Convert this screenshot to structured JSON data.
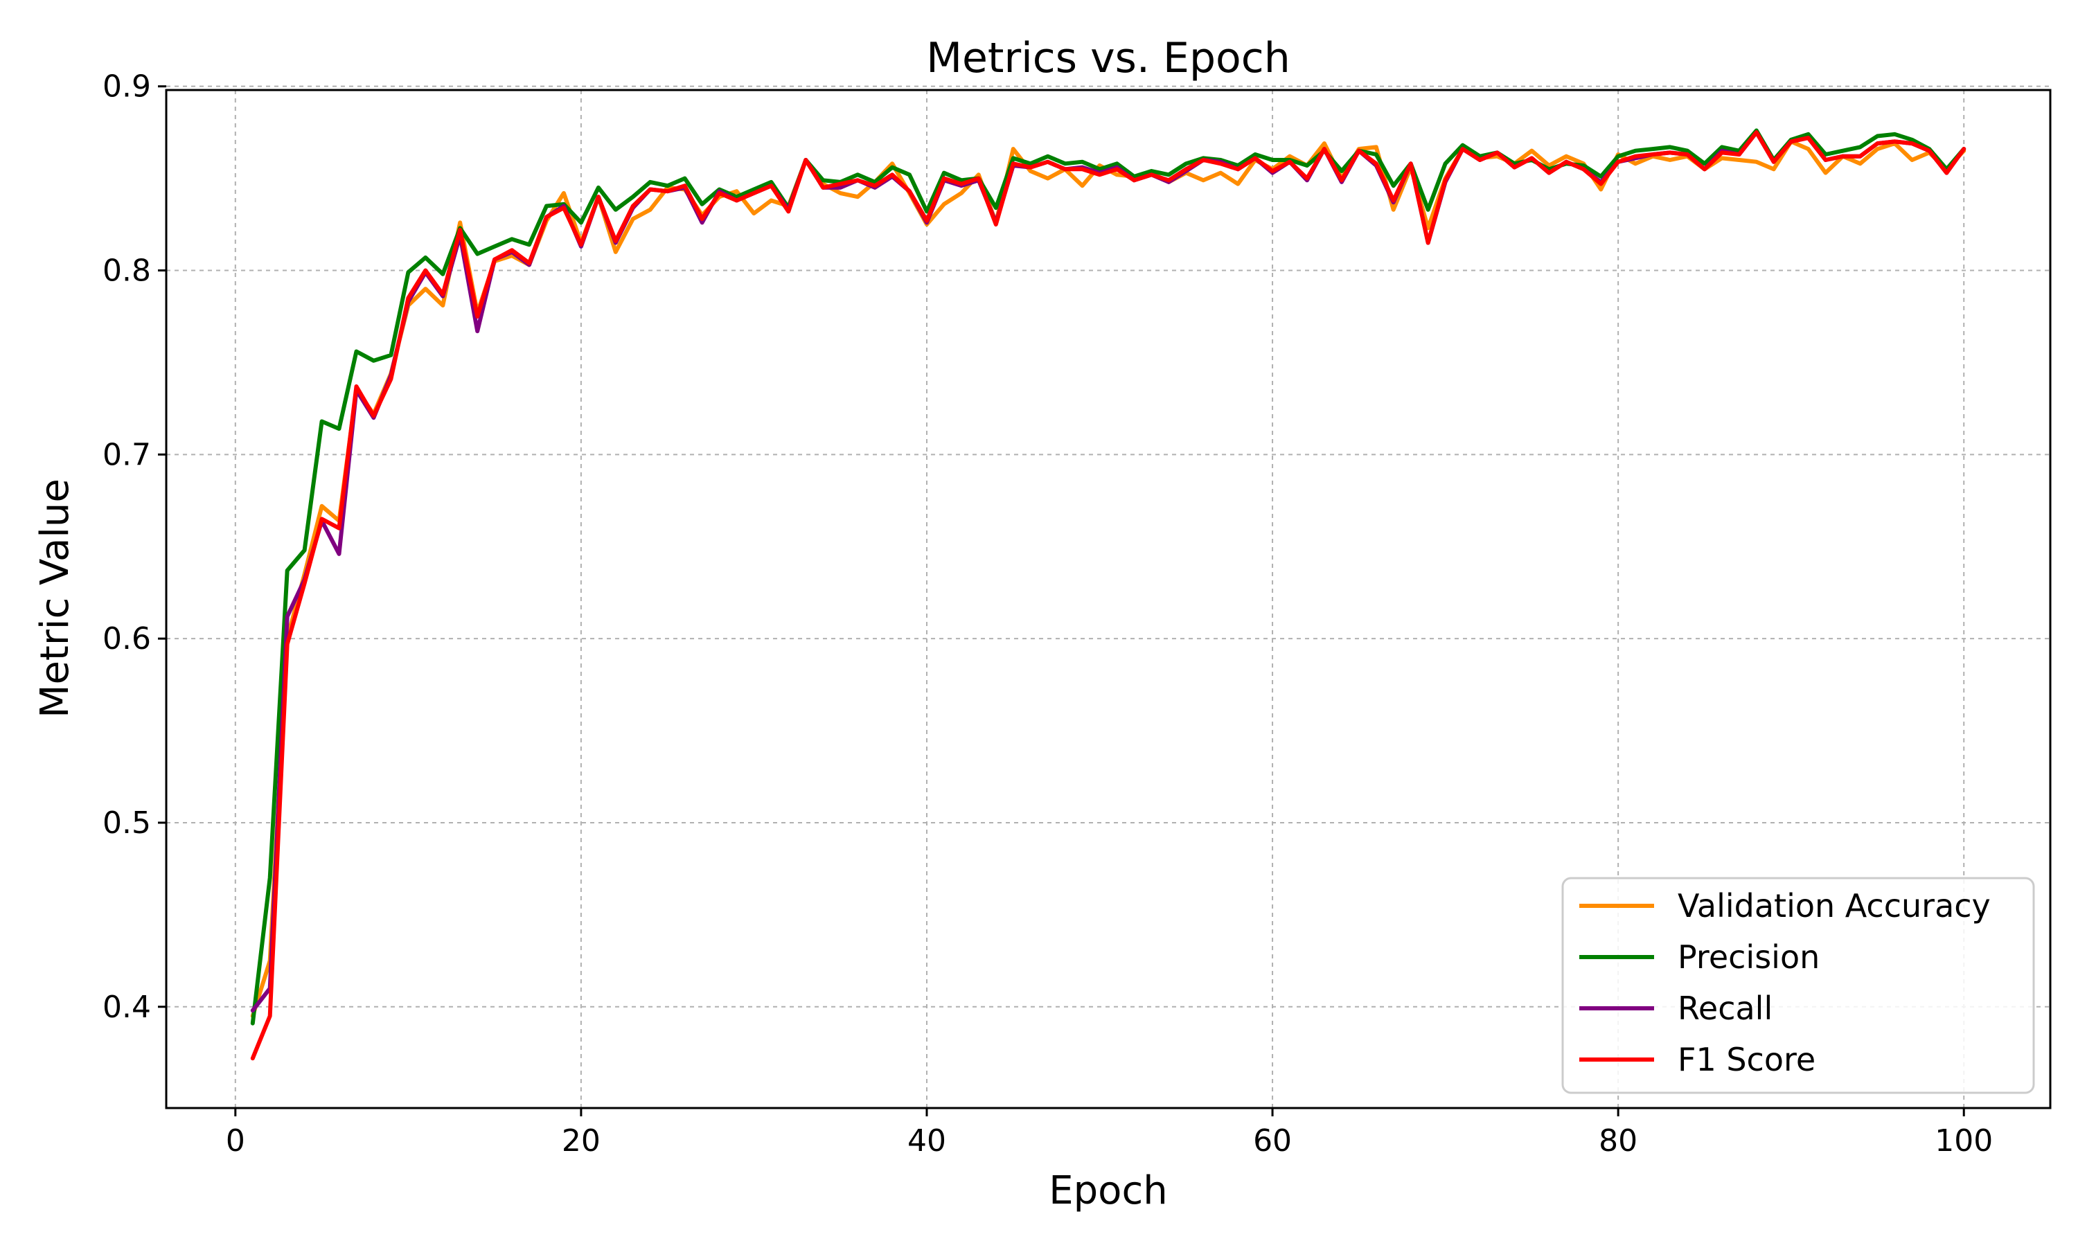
{
  "chart_data": {
    "type": "line",
    "title": "Metrics vs. Epoch",
    "xlabel": "Epoch",
    "ylabel": "Metric Value",
    "xlim": [
      -4,
      105
    ],
    "ylim": [
      0.345,
      0.898
    ],
    "xticks": [
      0,
      20,
      40,
      60,
      80,
      100
    ],
    "xtick_labels": [
      "0",
      "20",
      "40",
      "60",
      "80",
      "100"
    ],
    "yticks": [
      0.4,
      0.5,
      0.6,
      0.7,
      0.8,
      0.9
    ],
    "ytick_labels": [
      "0.4",
      "0.5",
      "0.6",
      "0.7",
      "0.8",
      "0.9"
    ],
    "grid": true,
    "legend_position": "lower-right",
    "x": [
      1,
      2,
      3,
      4,
      5,
      6,
      7,
      8,
      9,
      10,
      11,
      12,
      13,
      14,
      15,
      16,
      17,
      18,
      19,
      20,
      21,
      22,
      23,
      24,
      25,
      26,
      27,
      28,
      29,
      30,
      31,
      32,
      33,
      34,
      35,
      36,
      37,
      38,
      39,
      40,
      41,
      42,
      43,
      44,
      45,
      46,
      47,
      48,
      49,
      50,
      51,
      52,
      53,
      54,
      55,
      56,
      57,
      58,
      59,
      60,
      61,
      62,
      63,
      64,
      65,
      66,
      67,
      68,
      69,
      70,
      71,
      72,
      73,
      74,
      75,
      76,
      77,
      78,
      79,
      80,
      81,
      82,
      83,
      84,
      85,
      86,
      87,
      88,
      89,
      90,
      91,
      92,
      93,
      94,
      95,
      96,
      97,
      98,
      99,
      100
    ],
    "series": [
      {
        "name": "Validation Accuracy",
        "color": "#ff8c00",
        "values": [
          0.395,
          0.425,
          0.6,
          0.635,
          0.672,
          0.664,
          0.735,
          0.722,
          0.744,
          0.781,
          0.79,
          0.781,
          0.826,
          0.777,
          0.805,
          0.808,
          0.803,
          0.827,
          0.842,
          0.815,
          0.84,
          0.81,
          0.828,
          0.833,
          0.845,
          0.844,
          0.83,
          0.84,
          0.843,
          0.831,
          0.838,
          0.835,
          0.86,
          0.847,
          0.842,
          0.84,
          0.848,
          0.858,
          0.842,
          0.825,
          0.836,
          0.842,
          0.852,
          0.826,
          0.866,
          0.854,
          0.85,
          0.855,
          0.846,
          0.857,
          0.852,
          0.851,
          0.853,
          0.848,
          0.853,
          0.849,
          0.853,
          0.847,
          0.86,
          0.855,
          0.862,
          0.857,
          0.869,
          0.85,
          0.866,
          0.867,
          0.833,
          0.856,
          0.823,
          0.85,
          0.866,
          0.861,
          0.862,
          0.858,
          0.865,
          0.857,
          0.862,
          0.858,
          0.844,
          0.863,
          0.858,
          0.862,
          0.86,
          0.862,
          0.855,
          0.861,
          0.86,
          0.859,
          0.855,
          0.87,
          0.866,
          0.853,
          0.862,
          0.858,
          0.866,
          0.869,
          0.86,
          0.864,
          0.855,
          0.865
        ]
      },
      {
        "name": "Precision",
        "color": "#008000",
        "values": [
          0.391,
          0.47,
          0.637,
          0.648,
          0.718,
          0.714,
          0.756,
          0.751,
          0.754,
          0.799,
          0.807,
          0.798,
          0.823,
          0.809,
          0.813,
          0.817,
          0.814,
          0.835,
          0.836,
          0.826,
          0.845,
          0.833,
          0.84,
          0.848,
          0.846,
          0.85,
          0.836,
          0.844,
          0.84,
          0.844,
          0.848,
          0.834,
          0.86,
          0.849,
          0.848,
          0.852,
          0.848,
          0.856,
          0.852,
          0.832,
          0.853,
          0.849,
          0.85,
          0.834,
          0.861,
          0.858,
          0.862,
          0.858,
          0.859,
          0.855,
          0.858,
          0.851,
          0.854,
          0.852,
          0.858,
          0.861,
          0.86,
          0.857,
          0.863,
          0.86,
          0.86,
          0.857,
          0.865,
          0.854,
          0.865,
          0.863,
          0.846,
          0.858,
          0.833,
          0.858,
          0.868,
          0.862,
          0.864,
          0.858,
          0.86,
          0.855,
          0.858,
          0.857,
          0.851,
          0.862,
          0.865,
          0.866,
          0.867,
          0.865,
          0.858,
          0.867,
          0.865,
          0.876,
          0.86,
          0.871,
          0.874,
          0.863,
          0.865,
          0.867,
          0.873,
          0.874,
          0.871,
          0.866,
          0.855,
          0.866
        ]
      },
      {
        "name": "Recall",
        "color": "#800080",
        "values": [
          0.398,
          0.41,
          0.612,
          0.632,
          0.664,
          0.646,
          0.735,
          0.72,
          0.743,
          0.783,
          0.799,
          0.786,
          0.819,
          0.767,
          0.806,
          0.81,
          0.803,
          0.829,
          0.835,
          0.813,
          0.84,
          0.815,
          0.834,
          0.844,
          0.843,
          0.845,
          0.826,
          0.843,
          0.838,
          0.842,
          0.846,
          0.833,
          0.86,
          0.845,
          0.845,
          0.849,
          0.845,
          0.851,
          0.843,
          0.826,
          0.849,
          0.846,
          0.849,
          0.826,
          0.857,
          0.856,
          0.859,
          0.855,
          0.856,
          0.853,
          0.856,
          0.849,
          0.852,
          0.848,
          0.854,
          0.86,
          0.859,
          0.855,
          0.861,
          0.853,
          0.859,
          0.849,
          0.866,
          0.848,
          0.865,
          0.857,
          0.837,
          0.858,
          0.815,
          0.848,
          0.866,
          0.86,
          0.864,
          0.856,
          0.861,
          0.853,
          0.859,
          0.855,
          0.848,
          0.859,
          0.861,
          0.863,
          0.864,
          0.863,
          0.855,
          0.865,
          0.863,
          0.875,
          0.859,
          0.87,
          0.872,
          0.86,
          0.862,
          0.862,
          0.869,
          0.87,
          0.869,
          0.865,
          0.853,
          0.866
        ]
      },
      {
        "name": "F1 Score",
        "color": "#ff0000",
        "values": [
          0.372,
          0.395,
          0.597,
          0.63,
          0.665,
          0.66,
          0.737,
          0.721,
          0.741,
          0.785,
          0.8,
          0.787,
          0.822,
          0.775,
          0.806,
          0.811,
          0.804,
          0.829,
          0.834,
          0.814,
          0.84,
          0.816,
          0.835,
          0.844,
          0.843,
          0.846,
          0.828,
          0.842,
          0.838,
          0.842,
          0.846,
          0.832,
          0.86,
          0.845,
          0.847,
          0.849,
          0.846,
          0.852,
          0.843,
          0.827,
          0.85,
          0.847,
          0.85,
          0.825,
          0.858,
          0.856,
          0.859,
          0.855,
          0.855,
          0.852,
          0.855,
          0.849,
          0.852,
          0.849,
          0.855,
          0.86,
          0.858,
          0.855,
          0.861,
          0.854,
          0.859,
          0.85,
          0.866,
          0.849,
          0.865,
          0.858,
          0.838,
          0.858,
          0.815,
          0.849,
          0.866,
          0.86,
          0.864,
          0.856,
          0.861,
          0.853,
          0.859,
          0.855,
          0.847,
          0.859,
          0.862,
          0.863,
          0.864,
          0.863,
          0.855,
          0.864,
          0.863,
          0.875,
          0.859,
          0.87,
          0.872,
          0.86,
          0.862,
          0.862,
          0.869,
          0.87,
          0.869,
          0.865,
          0.853,
          0.866
        ]
      }
    ]
  }
}
